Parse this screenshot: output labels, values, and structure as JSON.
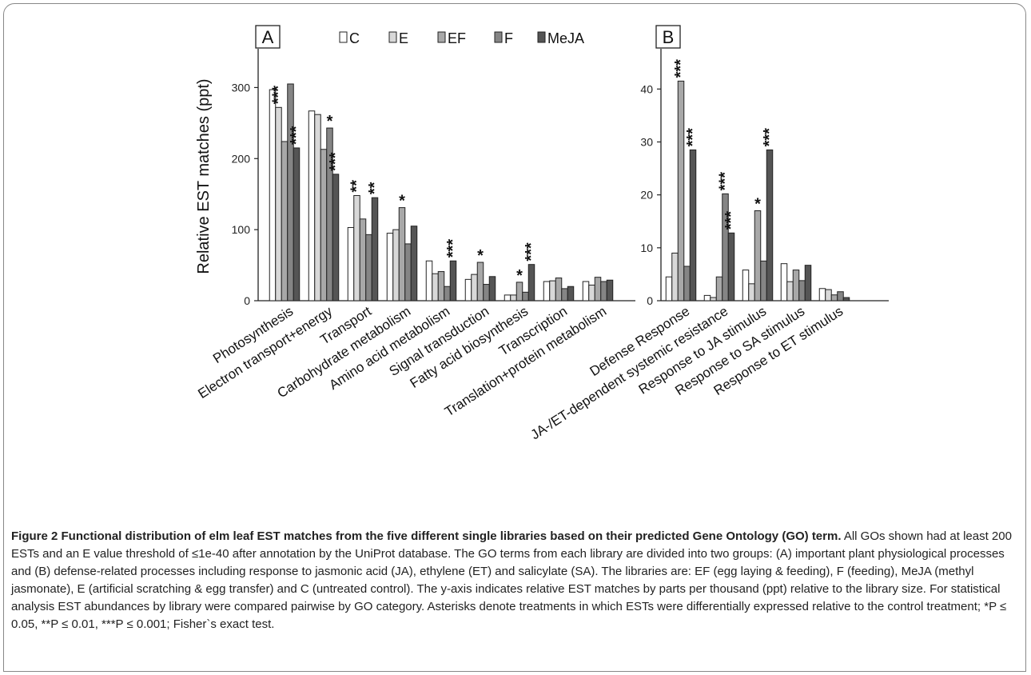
{
  "chart_data": [
    {
      "type": "bar",
      "panel": "A",
      "ylabel": "Relative EST matches (ppt)",
      "ylim": [
        0,
        350
      ],
      "yticks": [
        "0",
        "100",
        "200",
        "300"
      ],
      "categories": [
        "Photosynthesis",
        "Electron transport+energy",
        "Transport",
        "Carbohydrate metabolism",
        "Amino acid metabolism",
        "Signal transduction",
        "Fatty acid biosynthesis",
        "Transcription",
        "Translation+protein metabolism"
      ],
      "series": [
        {
          "name": "C",
          "color": "#ffffff",
          "values": [
            297,
            267,
            103,
            95,
            56,
            30,
            8,
            27,
            27
          ]
        },
        {
          "name": "E",
          "color": "#d8d8d8",
          "values": [
            272,
            262,
            148,
            100,
            38,
            37,
            8,
            28,
            22
          ]
        },
        {
          "name": "EF",
          "color": "#a8a8a8",
          "values": [
            224,
            213,
            115,
            131,
            41,
            54,
            26,
            32,
            33
          ]
        },
        {
          "name": "F",
          "color": "#858585",
          "values": [
            305,
            243,
            93,
            80,
            20,
            23,
            12,
            17,
            27
          ]
        },
        {
          "name": "MeJA",
          "color": "#555555",
          "values": [
            215,
            178,
            145,
            105,
            56,
            34,
            51,
            20,
            29
          ]
        }
      ],
      "significance": [
        {
          "category": 0,
          "series": 1,
          "label": "***"
        },
        {
          "category": 0,
          "series": 4,
          "label": "***"
        },
        {
          "category": 1,
          "series": 3,
          "label": "*"
        },
        {
          "category": 1,
          "series": 4,
          "label": "***"
        },
        {
          "category": 2,
          "series": 1,
          "label": "**"
        },
        {
          "category": 2,
          "series": 4,
          "label": "**"
        },
        {
          "category": 3,
          "series": 2,
          "label": "*"
        },
        {
          "category": 4,
          "series": 4,
          "label": "***"
        },
        {
          "category": 5,
          "series": 2,
          "label": "*"
        },
        {
          "category": 6,
          "series": 2,
          "label": "*"
        },
        {
          "category": 6,
          "series": 4,
          "label": "***"
        }
      ]
    },
    {
      "type": "bar",
      "panel": "B",
      "ylim": [
        0,
        47
      ],
      "yticks": [
        "0",
        "10",
        "20",
        "30",
        "40"
      ],
      "categories": [
        "Defense Response",
        "JA-/ET-dependent systemic resistance",
        "Response to JA stimulus",
        "Response to SA stimulus",
        "Response to ET stimulus"
      ],
      "series": [
        {
          "name": "C",
          "color": "#ffffff",
          "values": [
            4.5,
            1.0,
            5.8,
            7.0,
            2.3
          ]
        },
        {
          "name": "E",
          "color": "#d8d8d8",
          "values": [
            9.0,
            0.6,
            3.2,
            3.6,
            2.1
          ]
        },
        {
          "name": "EF",
          "color": "#a8a8a8",
          "values": [
            41.5,
            4.5,
            17.0,
            5.8,
            1.1
          ]
        },
        {
          "name": "F",
          "color": "#858585",
          "values": [
            6.5,
            20.2,
            7.5,
            3.8,
            1.7
          ]
        },
        {
          "name": "MeJA",
          "color": "#555555",
          "values": [
            28.5,
            12.8,
            28.5,
            6.7,
            0.6
          ]
        }
      ],
      "significance": [
        {
          "category": 0,
          "series": 2,
          "label": "***"
        },
        {
          "category": 0,
          "series": 4,
          "label": "***"
        },
        {
          "category": 1,
          "series": 3,
          "label": "***"
        },
        {
          "category": 1,
          "series": 4,
          "label": "***"
        },
        {
          "category": 2,
          "series": 2,
          "label": "*"
        },
        {
          "category": 2,
          "series": 4,
          "label": "***"
        }
      ]
    }
  ],
  "panel_labels": {
    "a": "A",
    "b": "B"
  },
  "legend": [
    {
      "name": "C",
      "color": "#ffffff"
    },
    {
      "name": "E",
      "color": "#d8d8d8"
    },
    {
      "name": "EF",
      "color": "#a8a8a8"
    },
    {
      "name": "F",
      "color": "#858585"
    },
    {
      "name": "MeJA",
      "color": "#555555"
    }
  ],
  "caption": {
    "title": "Figure 2 Functional distribution of elm leaf EST matches from the five different single libraries based on their predicted Gene Ontology (GO) term.",
    "body": " All GOs shown had at least 200 ESTs and an E value threshold of ≤1e-40 after annotation by the UniProt database. The GO terms from each library are divided into two groups: (A) important plant physiological processes and (B) defense-related processes including response to jasmonic acid (JA), ethylene (ET) and salicylate (SA). The libraries are: EF (egg laying & feeding), F (feeding), MeJA (methyl jasmonate), E (artificial scratching & egg transfer) and C (untreated control). The y-axis indicates relative EST matches by parts per thousand (ppt) relative to the library size. For statistical analysis EST abundances by library were compared pairwise by GO category. Asterisks denote treatments in which ESTs were differentially expressed relative to the control treatment; *P ≤ 0.05, **P ≤ 0.01, ***P ≤ 0.001; Fisher`s exact test."
  }
}
